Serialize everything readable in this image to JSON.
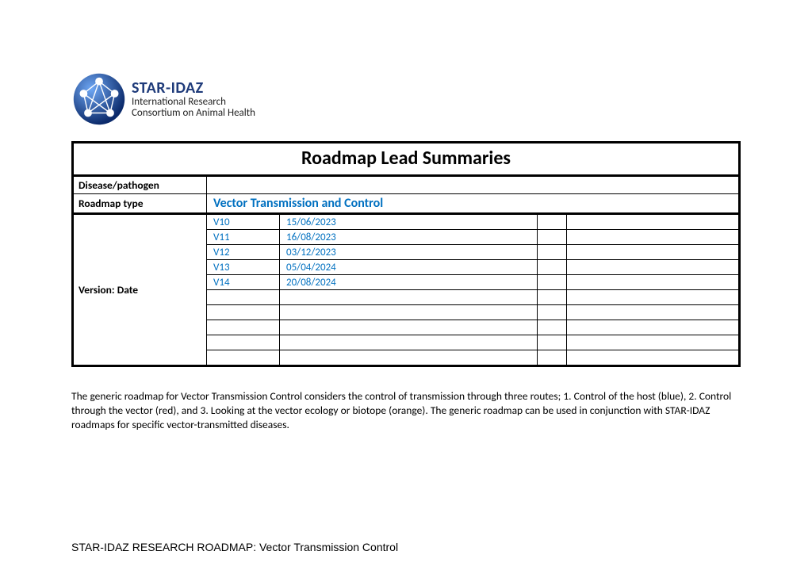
{
  "logo": {
    "title": "STAR-IDAZ",
    "sub1": "International Research",
    "sub2": "Consortium on Animal Health",
    "title_color": "#1f3b7a",
    "sphere_gradient_start": "#6fa8f5",
    "sphere_gradient_end": "#0b2a6b"
  },
  "table": {
    "title": "Roadmap Lead Summaries",
    "rows": {
      "disease_label": "Disease/pathogen",
      "disease_value": "",
      "roadmap_label": "Roadmap type",
      "roadmap_value": "Vector Transmission and Control",
      "version_label": "Version: Date"
    },
    "link_color": "#0070c0",
    "versions": [
      {
        "v": "V10",
        "d": "15/06/2023"
      },
      {
        "v": "V11",
        "d": "16/08/2023"
      },
      {
        "v": "V12",
        "d": "03/12/2023"
      },
      {
        "v": "V13",
        "d": "05/04/2024"
      },
      {
        "v": "V14",
        "d": "20/08/2024"
      },
      {
        "v": "",
        "d": ""
      },
      {
        "v": "",
        "d": ""
      },
      {
        "v": "",
        "d": ""
      },
      {
        "v": "",
        "d": ""
      },
      {
        "v": "",
        "d": ""
      }
    ]
  },
  "description": "The generic roadmap for Vector Transmission Control considers the control of transmission through three routes; 1. Control of the host (blue), 2. Control through the vector (red), and 3. Looking at the vector ecology or biotope (orange). The generic roadmap can be used in conjunction with STAR-IDAZ roadmaps for specific vector-transmitted diseases.",
  "footer": "STAR-IDAZ RESEARCH ROADMAP: Vector Transmission Control"
}
